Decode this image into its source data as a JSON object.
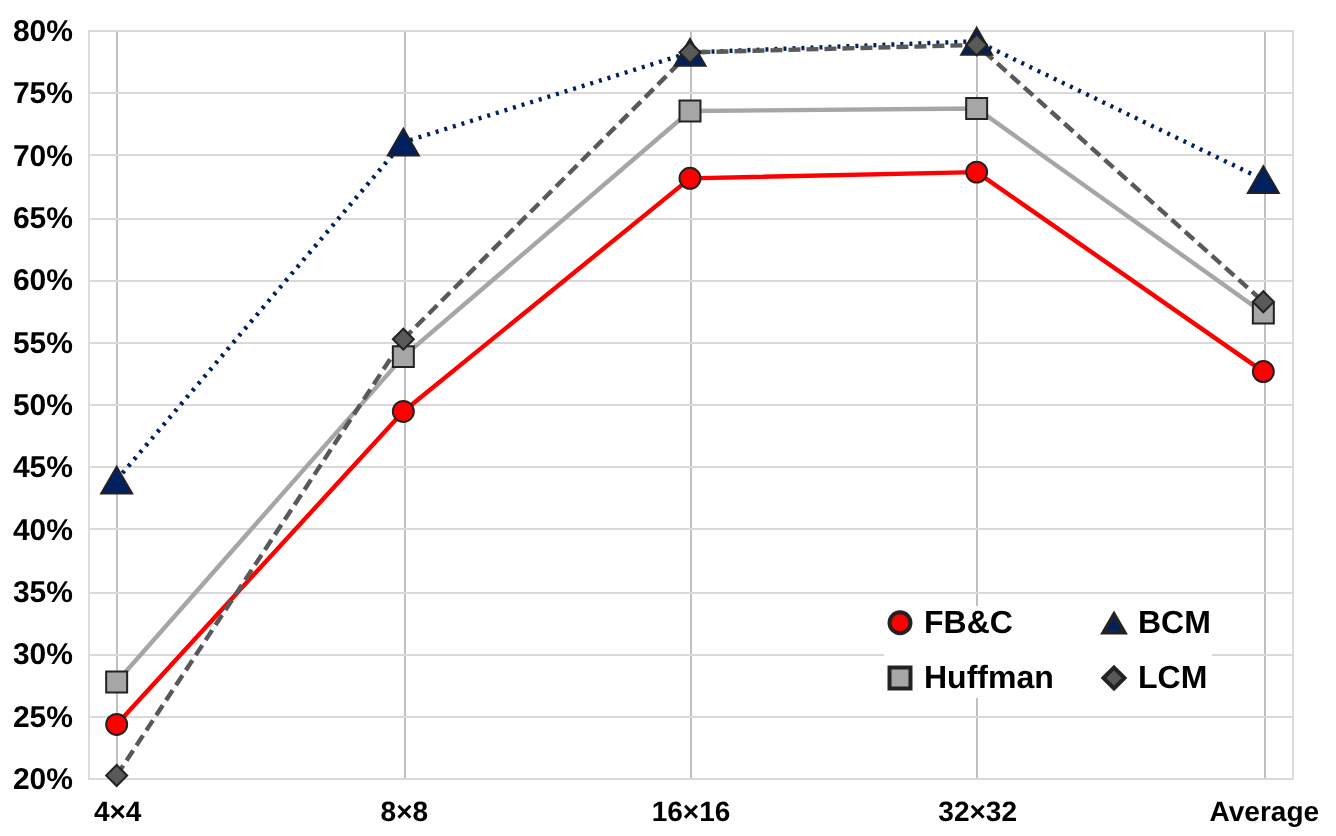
{
  "chart_data": {
    "type": "line",
    "categories": [
      "4×4",
      "8×8",
      "16×16",
      "32×32",
      "Average"
    ],
    "series": [
      {
        "name": "FB&C",
        "color": "#ff0000",
        "marker": "circle",
        "line_style": "solid",
        "values": [
          24.3,
          49.4,
          68.1,
          68.6,
          52.6
        ]
      },
      {
        "name": "Huffman",
        "color": "#a6a6a6",
        "marker": "square",
        "line_style": "solid",
        "values": [
          27.7,
          53.8,
          73.5,
          73.7,
          57.3
        ]
      },
      {
        "name": "BCM",
        "color": "#002060",
        "marker": "triangle",
        "line_style": "dotted",
        "values": [
          43.9,
          71.0,
          78.2,
          79.1,
          68.0
        ]
      },
      {
        "name": "LCM",
        "color": "#595959",
        "marker": "diamond",
        "line_style": "dashed",
        "values": [
          20.2,
          55.2,
          78.2,
          78.8,
          58.2
        ]
      }
    ],
    "ylim": [
      20,
      80
    ],
    "yticks": [
      {
        "value": 20,
        "label": "20%"
      },
      {
        "value": 25,
        "label": "25%"
      },
      {
        "value": 30,
        "label": "30%"
      },
      {
        "value": 35,
        "label": "35%"
      },
      {
        "value": 40,
        "label": "40%"
      },
      {
        "value": 45,
        "label": "45%"
      },
      {
        "value": 50,
        "label": "50%"
      },
      {
        "value": 55,
        "label": "55%"
      },
      {
        "value": 60,
        "label": "60%"
      },
      {
        "value": 65,
        "label": "65%"
      },
      {
        "value": 70,
        "label": "70%"
      },
      {
        "value": 75,
        "label": "75%"
      },
      {
        "value": 80,
        "label": "80%"
      }
    ],
    "grid": true,
    "legend": "bottom right"
  }
}
